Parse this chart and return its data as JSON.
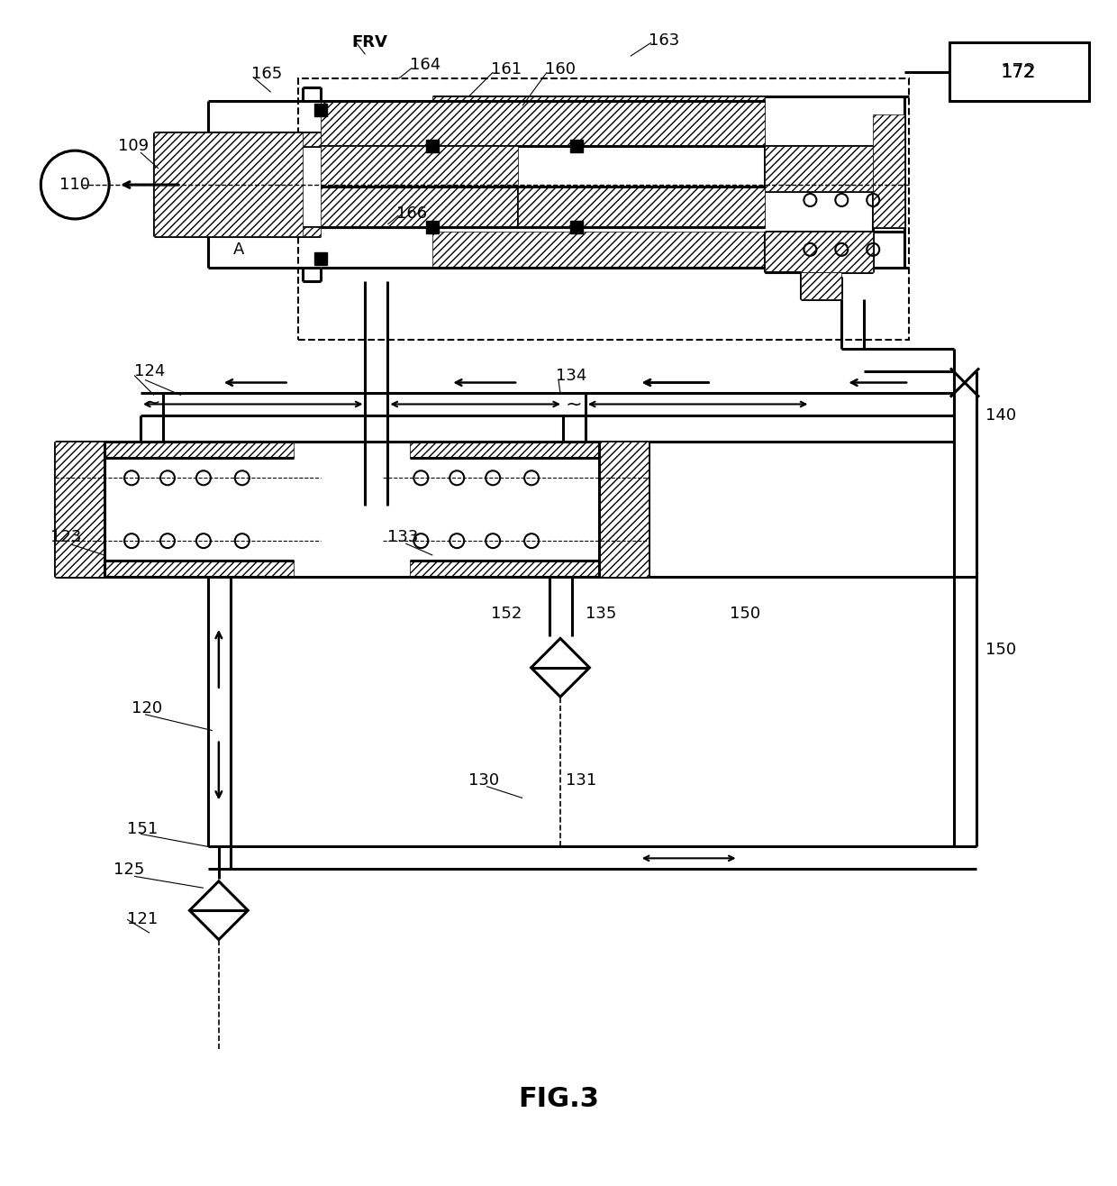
{
  "title": "FIG.3",
  "bg_color": "#ffffff",
  "fig_width": 12.4,
  "fig_height": 13.16
}
